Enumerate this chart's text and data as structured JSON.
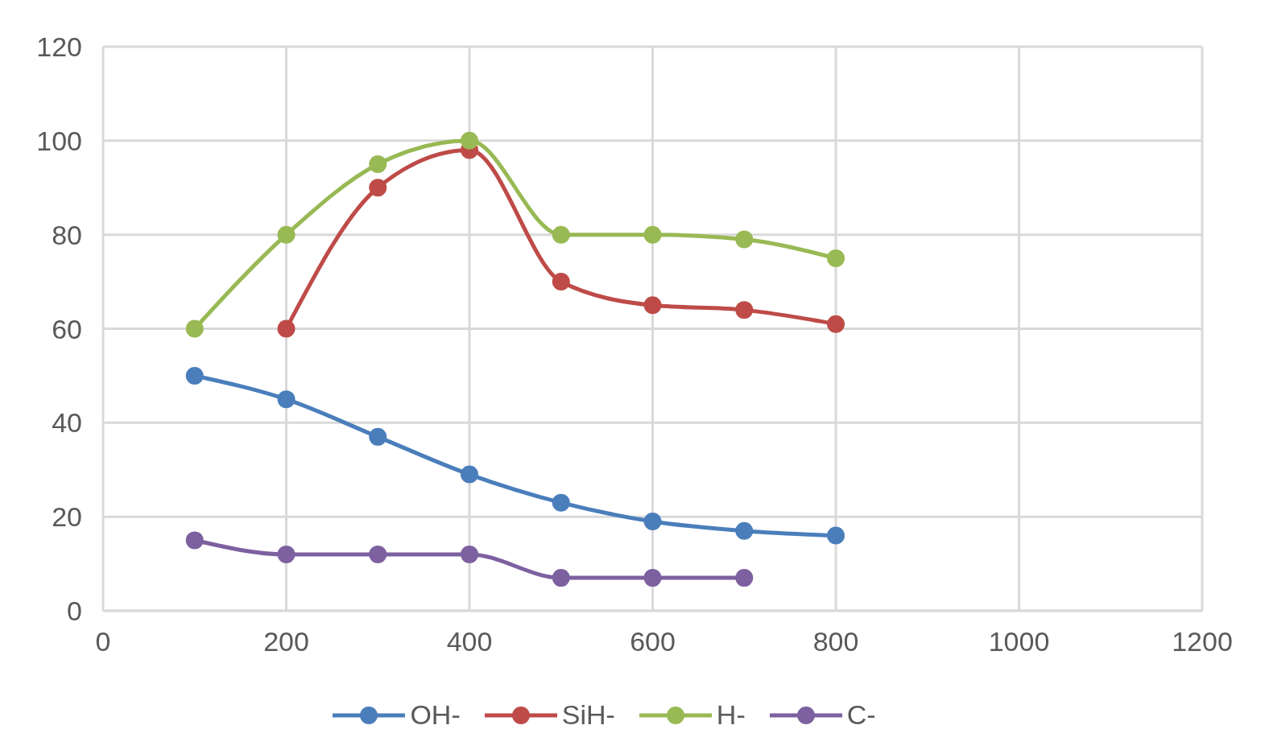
{
  "chart_data": {
    "type": "line",
    "x": [
      100,
      200,
      300,
      400,
      500,
      600,
      700,
      800
    ],
    "series": [
      {
        "name": "OH-",
        "color": "#4a7ebb",
        "values": [
          50,
          45,
          37,
          29,
          23,
          19,
          17,
          16
        ]
      },
      {
        "name": "SiH-",
        "color": "#be4b48",
        "values": [
          null,
          60,
          90,
          98,
          70,
          65,
          64,
          61
        ]
      },
      {
        "name": "H-",
        "color": "#98b954",
        "values": [
          60,
          80,
          95,
          100,
          80,
          80,
          79,
          75
        ]
      },
      {
        "name": "C-",
        "color": "#7d60a0",
        "values": [
          15,
          12,
          12,
          12,
          7,
          7,
          7,
          null
        ]
      }
    ],
    "xlim": [
      0,
      1200
    ],
    "xticks": [
      0,
      200,
      400,
      600,
      800,
      1000,
      1200
    ],
    "ylim": [
      0,
      120
    ],
    "yticks": [
      0,
      20,
      40,
      60,
      80,
      100,
      120
    ],
    "grid": true,
    "legend": "bottom",
    "marker": "circle",
    "line_style": "solid"
  }
}
